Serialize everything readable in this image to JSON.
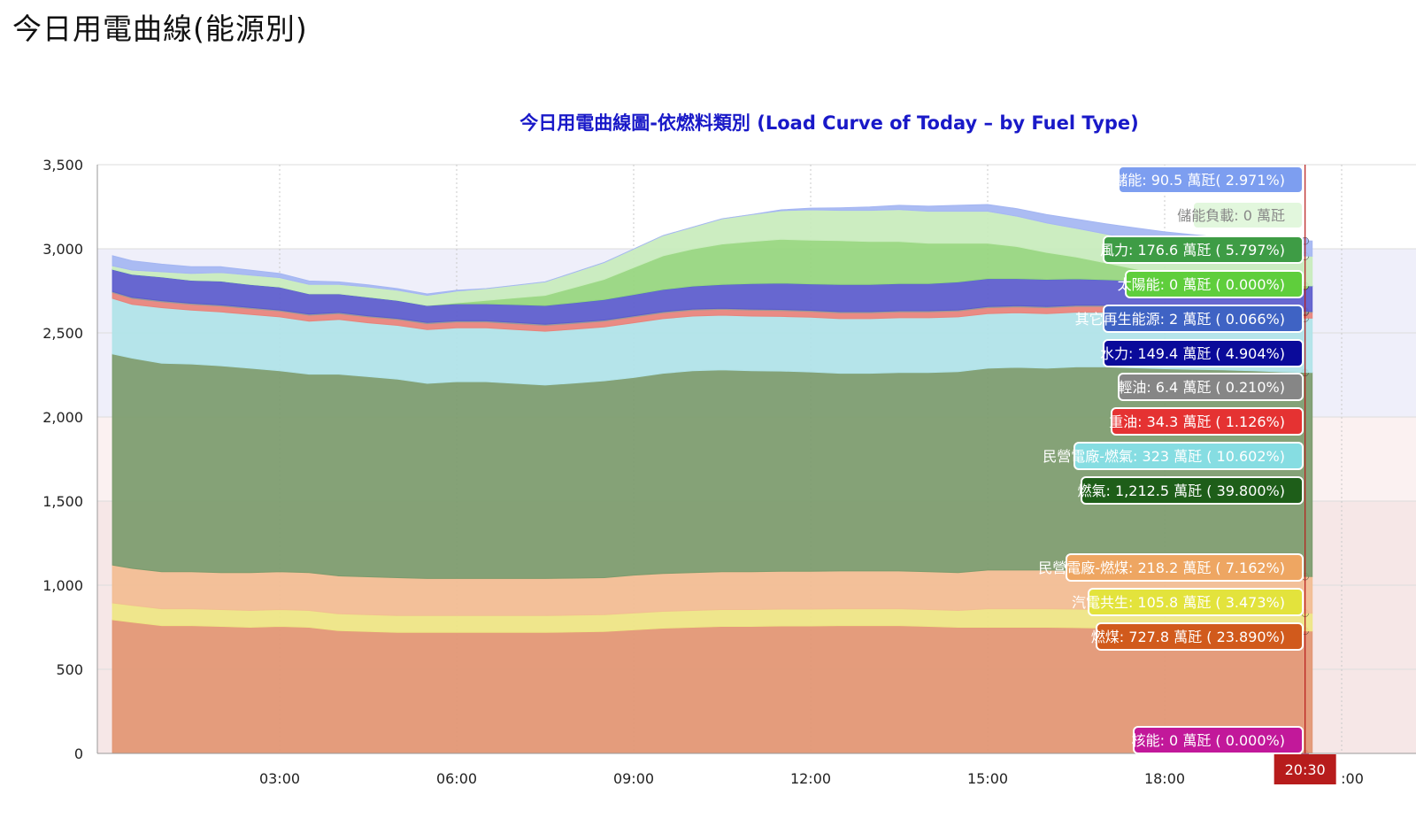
{
  "page": {
    "title": "今日用電曲線(能源別)"
  },
  "chart_data": {
    "type": "area",
    "stacked": true,
    "title": "今日用電曲線圖-依燃料類別 (Load Curve of Today – by Fuel Type)",
    "xlabel": "",
    "ylabel": "",
    "ylim": [
      0,
      3500
    ],
    "x_tick_labels": [
      "03:00",
      "06:00",
      "09:00",
      "12:00",
      "15:00",
      "18:00",
      ":00"
    ],
    "y_tick_labels": [
      "0",
      "500",
      "1,000",
      "1,500",
      "2,000",
      "2,500",
      "3,000",
      "3,500"
    ],
    "x": [
      "00:10",
      "00:30",
      "01:00",
      "01:30",
      "02:00",
      "02:30",
      "03:00",
      "03:30",
      "04:00",
      "04:30",
      "05:00",
      "05:30",
      "06:00",
      "06:30",
      "07:00",
      "07:30",
      "08:00",
      "08:30",
      "09:00",
      "09:30",
      "10:00",
      "10:30",
      "11:00",
      "11:30",
      "12:00",
      "12:30",
      "13:00",
      "13:30",
      "14:00",
      "14:30",
      "15:00",
      "15:30",
      "16:00",
      "16:30",
      "17:00",
      "17:30",
      "18:00",
      "18:30",
      "19:00",
      "19:30",
      "20:00",
      "20:30"
    ],
    "cursor_time": "20:30",
    "grid": true,
    "series": [
      {
        "name": "核能",
        "color": "#c2185b",
        "values": [
          0,
          0,
          0,
          0,
          0,
          0,
          0,
          0,
          0,
          0,
          0,
          0,
          0,
          0,
          0,
          0,
          0,
          0,
          0,
          0,
          0,
          0,
          0,
          0,
          0,
          0,
          0,
          0,
          0,
          0,
          0,
          0,
          0,
          0,
          0,
          0,
          0,
          0,
          0,
          0,
          0,
          0
        ]
      },
      {
        "name": "燃煤",
        "color": "#e29673",
        "values": [
          795,
          780,
          760,
          760,
          755,
          750,
          755,
          750,
          730,
          725,
          720,
          720,
          720,
          720,
          720,
          720,
          722,
          725,
          735,
          745,
          750,
          755,
          755,
          758,
          758,
          760,
          760,
          760,
          755,
          750,
          750,
          750,
          750,
          748,
          745,
          742,
          740,
          738,
          735,
          732,
          730,
          727.8
        ]
      },
      {
        "name": "汽電共生",
        "color": "#eee684",
        "values": [
          100,
          100,
          100,
          100,
          100,
          100,
          100,
          100,
          100,
          100,
          100,
          100,
          100,
          100,
          100,
          100,
          100,
          100,
          100,
          100,
          100,
          100,
          100,
          100,
          100,
          100,
          100,
          100,
          100,
          100,
          110,
          110,
          110,
          110,
          110,
          110,
          110,
          110,
          110,
          108,
          106,
          105.8
        ]
      },
      {
        "name": "民營電廠-燃煤",
        "color": "#f2bd92",
        "values": [
          225,
          220,
          220,
          220,
          220,
          225,
          225,
          225,
          225,
          225,
          225,
          220,
          220,
          220,
          220,
          220,
          220,
          220,
          225,
          225,
          225,
          225,
          225,
          225,
          225,
          225,
          225,
          225,
          225,
          225,
          230,
          230,
          230,
          230,
          228,
          225,
          222,
          220,
          220,
          220,
          219,
          218.2
        ]
      },
      {
        "name": "燃氣",
        "color": "#7b9b6c",
        "values": [
          1255,
          1250,
          1240,
          1235,
          1230,
          1215,
          1195,
          1180,
          1200,
          1190,
          1180,
          1160,
          1170,
          1170,
          1160,
          1150,
          1160,
          1170,
          1175,
          1190,
          1200,
          1200,
          1195,
          1190,
          1185,
          1175,
          1175,
          1180,
          1185,
          1195,
          1200,
          1205,
          1200,
          1210,
          1215,
          1215,
          1215,
          1215,
          1215,
          1215,
          1213,
          1212.5
        ]
      },
      {
        "name": "民營電廠-燃氣",
        "color": "#b0e3e8",
        "values": [
          330,
          320,
          330,
          320,
          320,
          320,
          320,
          315,
          325,
          320,
          320,
          320,
          320,
          320,
          320,
          320,
          320,
          320,
          325,
          325,
          325,
          325,
          325,
          325,
          325,
          325,
          325,
          325,
          325,
          325,
          325,
          325,
          325,
          325,
          325,
          325,
          325,
          325,
          325,
          325,
          324,
          323
        ]
      },
      {
        "name": "重油",
        "color": "#e8827a",
        "values": [
          35,
          35,
          35,
          35,
          35,
          35,
          35,
          35,
          35,
          35,
          35,
          35,
          35,
          35,
          35,
          35,
          35,
          35,
          35,
          35,
          35,
          35,
          35,
          35,
          35,
          35,
          35,
          35,
          35,
          35,
          35,
          35,
          35,
          35,
          35,
          35,
          35,
          35,
          35,
          35,
          35,
          34.3
        ]
      },
      {
        "name": "輕油",
        "color": "#999999",
        "values": [
          6.4,
          6.4,
          6.4,
          6.4,
          6.4,
          6.4,
          6.4,
          6.4,
          6.4,
          6.4,
          6.4,
          6.4,
          6.4,
          6.4,
          6.4,
          6.4,
          6.4,
          6.4,
          6.4,
          6.4,
          6.4,
          6.4,
          6.4,
          6.4,
          6.4,
          6.4,
          6.4,
          6.4,
          6.4,
          6.4,
          6.4,
          6.4,
          6.4,
          6.4,
          6.4,
          6.4,
          6.4,
          6.4,
          6.4,
          6.4,
          6.4,
          6.4
        ]
      },
      {
        "name": "水力",
        "color": "#5b5bcc",
        "values": [
          130,
          135,
          140,
          135,
          140,
          135,
          135,
          120,
          110,
          110,
          105,
          100,
          100,
          100,
          105,
          110,
          115,
          120,
          125,
          130,
          135,
          140,
          150,
          155,
          155,
          160,
          160,
          160,
          160,
          165,
          165,
          160,
          160,
          155,
          150,
          150,
          150,
          150,
          150,
          150,
          150,
          149.4
        ]
      },
      {
        "name": "其它再生能源",
        "color": "#4e6fc6",
        "values": [
          2,
          2,
          2,
          2,
          2,
          2,
          2,
          2,
          2,
          2,
          2,
          2,
          2,
          2,
          2,
          2,
          2,
          2,
          2,
          2,
          2,
          2,
          2,
          2,
          2,
          2,
          2,
          2,
          2,
          2,
          2,
          2,
          2,
          2,
          2,
          2,
          2,
          2,
          2,
          2,
          2,
          2
        ]
      },
      {
        "name": "太陽能",
        "color": "#96d67d",
        "values": [
          0,
          0,
          0,
          0,
          0,
          0,
          0,
          0,
          0,
          0,
          0,
          0,
          5,
          20,
          40,
          60,
          90,
          120,
          160,
          200,
          220,
          240,
          250,
          260,
          260,
          260,
          255,
          250,
          240,
          230,
          210,
          190,
          160,
          130,
          100,
          70,
          40,
          20,
          5,
          0,
          0,
          0
        ]
      },
      {
        "name": "風力",
        "color": "#c8ecbc",
        "values": [
          20,
          25,
          30,
          40,
          50,
          55,
          55,
          55,
          55,
          60,
          60,
          60,
          70,
          70,
          75,
          80,
          90,
          100,
          110,
          120,
          130,
          150,
          160,
          170,
          180,
          180,
          185,
          190,
          190,
          190,
          190,
          180,
          175,
          170,
          172,
          174,
          175,
          176,
          176,
          176,
          176.5,
          176.6
        ]
      },
      {
        "name": "儲能負載",
        "color": "#e6f7e1",
        "values": [
          0,
          0,
          0,
          0,
          0,
          0,
          0,
          0,
          0,
          0,
          0,
          0,
          0,
          0,
          0,
          0,
          0,
          0,
          0,
          0,
          0,
          0,
          0,
          0,
          0,
          0,
          0,
          0,
          0,
          0,
          0,
          0,
          0,
          0,
          0,
          0,
          0,
          0,
          0,
          0,
          0,
          0
        ]
      },
      {
        "name": "儲能",
        "color": "#a4b6f2",
        "values": [
          60,
          55,
          45,
          40,
          35,
          30,
          25,
          20,
          15,
          12,
          10,
          8,
          5,
          0,
          0,
          0,
          0,
          0,
          0,
          0,
          0,
          0,
          0,
          5,
          10,
          15,
          20,
          25,
          30,
          35,
          40,
          45,
          50,
          55,
          60,
          70,
          80,
          85,
          88,
          90,
          90,
          90.5
        ]
      }
    ],
    "tooltips": [
      {
        "text": "儲能: 90.5 萬瓩( 2.971%)",
        "bg": "#7d9ef0",
        "y": 203
      },
      {
        "text": "儲能負載: 0 萬瓩",
        "bg": "#e2f7dd",
        "y": 243,
        "fg": "#888888"
      },
      {
        "text": "風力: 176.6 萬瓩 ( 5.797%)",
        "bg": "#3e9c45",
        "y": 282
      },
      {
        "text": "太陽能: 0 萬瓩 ( 0.000%)",
        "bg": "#5fce3c",
        "y": 321
      },
      {
        "text": "其它再生能源: 2 萬瓩 ( 0.066%)",
        "bg": "#3f63c4",
        "y": 360
      },
      {
        "text": "水力: 149.4 萬瓩 ( 4.904%)",
        "bg": "#0a0a9a",
        "y": 399
      },
      {
        "text": "輕油: 6.4 萬瓩 ( 0.210%)",
        "bg": "#868686",
        "y": 437
      },
      {
        "text": "重油: 34.3 萬瓩 ( 1.126%)",
        "bg": "#e53232",
        "y": 476
      },
      {
        "text": "民營電廠-燃氣: 323 萬瓩 ( 10.602%)",
        "bg": "#86dde2",
        "y": 515
      },
      {
        "text": "燃氣: 1,212.5 萬瓩 ( 39.800%)",
        "bg": "#1e5e19",
        "y": 554
      },
      {
        "text": "民營電廠-燃煤: 218.2 萬瓩 ( 7.162%)",
        "bg": "#eea662",
        "y": 641
      },
      {
        "text": "汽電共生: 105.8 萬瓩 ( 3.473%)",
        "bg": "#e3e33c",
        "y": 680
      },
      {
        "text": "燃煤: 727.8 萬瓩 ( 23.890%)",
        "bg": "#d15a1c",
        "y": 719
      },
      {
        "text": "核能: 0 萬瓩 ( 0.000%)",
        "bg": "#c2189a",
        "y": 836
      }
    ]
  }
}
